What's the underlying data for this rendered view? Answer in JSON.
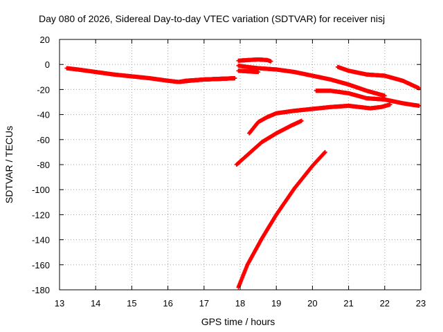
{
  "chart_data": {
    "type": "scatter",
    "title": "Day 080 of 2026, Sidereal Day-to-day VTEC variation (SDTVAR) for receiver nisj",
    "xlabel": "GPS time / hours",
    "ylabel": "SDTVAR / TECUs",
    "xlim": [
      13,
      23
    ],
    "ylim": [
      -180,
      20
    ],
    "xticks": [
      "13",
      "14",
      "15",
      "16",
      "17",
      "18",
      "19",
      "20",
      "21",
      "22",
      "23"
    ],
    "yticks": [
      "20",
      "0",
      "-20",
      "-40",
      "-60",
      "-80",
      "-100",
      "-120",
      "-140",
      "-160",
      "-180"
    ],
    "grid": true,
    "marker": "plus",
    "color": "#ff0000",
    "series": [
      {
        "x": [
          13.2,
          13.5,
          14.0,
          14.5,
          15.0,
          15.5,
          16.0,
          16.3,
          16.5,
          17.0,
          17.5,
          17.85
        ],
        "y": [
          -3,
          -4,
          -6,
          -8,
          -9.5,
          -11,
          -13,
          -14,
          -13,
          -12,
          -11.5,
          -11
        ]
      },
      {
        "x": [
          16.3,
          16.6,
          17.0,
          17.4,
          17.85
        ],
        "y": [
          -14,
          -13,
          -12,
          -11.5,
          -11
        ]
      },
      {
        "x": [
          17.95,
          18.2,
          18.5,
          18.75,
          18.85
        ],
        "y": [
          3,
          3.5,
          4,
          3.5,
          2.5
        ]
      },
      {
        "x": [
          17.95,
          18.2,
          18.5
        ],
        "y": [
          -5,
          -5.5,
          -6
        ]
      },
      {
        "x": [
          17.95,
          18.2,
          18.5,
          19.0,
          19.5,
          20.0,
          20.5,
          21.0,
          21.5,
          22.0
        ],
        "y": [
          -1,
          -2,
          -3,
          -4,
          -6,
          -9,
          -12,
          -16,
          -21,
          -25
        ]
      },
      {
        "x": [
          20.7,
          21.0,
          21.5,
          22.0,
          22.5,
          22.95
        ],
        "y": [
          -2,
          -5,
          -8,
          -9,
          -13,
          -19
        ]
      },
      {
        "x": [
          20.1,
          20.5,
          21.0,
          21.5,
          22.0,
          22.5,
          22.95
        ],
        "y": [
          -21,
          -21,
          -23,
          -27,
          -28,
          -31,
          -33
        ]
      },
      {
        "x": [
          18.25,
          18.5,
          18.75,
          19.0,
          19.5,
          20.0,
          20.5,
          21.0,
          21.3,
          21.6,
          21.9,
          22.15
        ],
        "y": [
          -55,
          -46,
          -42,
          -39,
          -37,
          -35.5,
          -34,
          -33,
          -34,
          -35,
          -34,
          -32
        ]
      },
      {
        "x": [
          17.9,
          18.25,
          18.6,
          19.0,
          19.4,
          19.7
        ],
        "y": [
          -80,
          -71,
          -62,
          -55,
          -49,
          -45
        ]
      },
      {
        "x": [
          17.95,
          18.2,
          18.6,
          19.0,
          19.5,
          20.0,
          20.35
        ],
        "y": [
          -178,
          -160,
          -139,
          -120,
          -99,
          -81,
          -70
        ]
      }
    ]
  }
}
